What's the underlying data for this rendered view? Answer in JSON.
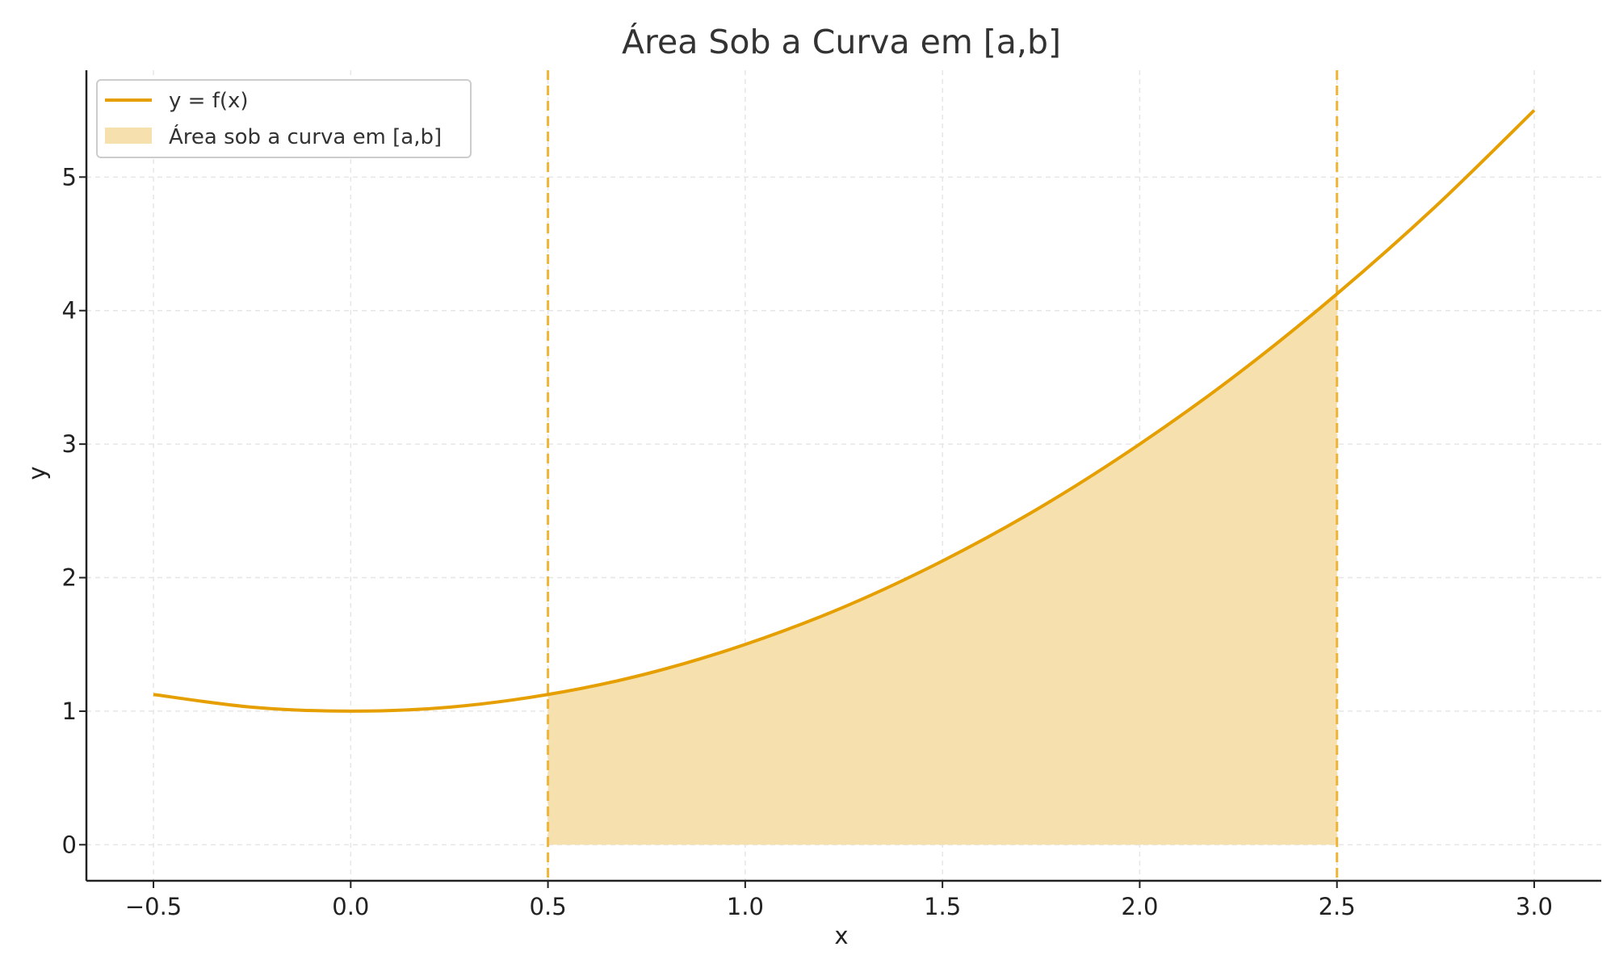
{
  "chart_data": {
    "type": "area",
    "title": "Área Sob a Curva em [a,b]",
    "xlabel": "x",
    "ylabel": "y",
    "xlim": [
      -0.67,
      3.17
    ],
    "ylim": [
      -0.27,
      5.8
    ],
    "xticks": [
      -0.5,
      0.0,
      0.5,
      1.0,
      1.5,
      2.0,
      2.5,
      3.0
    ],
    "xtick_labels": [
      "−0.5",
      "0.0",
      "0.5",
      "1.0",
      "1.5",
      "2.0",
      "2.5",
      "3.0"
    ],
    "yticks": [
      0,
      1,
      2,
      3,
      4,
      5
    ],
    "ytick_labels": [
      "0",
      "1",
      "2",
      "3",
      "4",
      "5"
    ],
    "grid": true,
    "legend_position": "top-left",
    "interval": {
      "a": 0.5,
      "b": 2.5
    },
    "series": [
      {
        "name": "y = f(x)",
        "kind": "line",
        "color": "#E69F00",
        "x": [
          -0.5,
          -0.25,
          0.0,
          0.25,
          0.5,
          0.75,
          1.0,
          1.25,
          1.5,
          1.75,
          2.0,
          2.25,
          2.5,
          2.75,
          3.0
        ],
        "y": [
          1.125,
          1.03,
          1.0,
          1.03,
          1.125,
          1.28,
          1.5,
          1.78,
          2.125,
          2.53,
          3.0,
          3.53,
          4.125,
          4.78,
          5.5
        ]
      },
      {
        "name": "Área sob a curva em [a,b]",
        "kind": "fill",
        "color": "#F6E1AE",
        "x": [
          0.5,
          0.75,
          1.0,
          1.25,
          1.5,
          1.75,
          2.0,
          2.25,
          2.5
        ],
        "y": [
          1.125,
          1.28,
          1.5,
          1.78,
          2.125,
          2.53,
          3.0,
          3.53,
          4.125
        ]
      }
    ],
    "vlines": [
      {
        "x": 0.5,
        "style": "dashed",
        "color": "#F0B437"
      },
      {
        "x": 2.5,
        "style": "dashed",
        "color": "#F0B437"
      }
    ]
  }
}
